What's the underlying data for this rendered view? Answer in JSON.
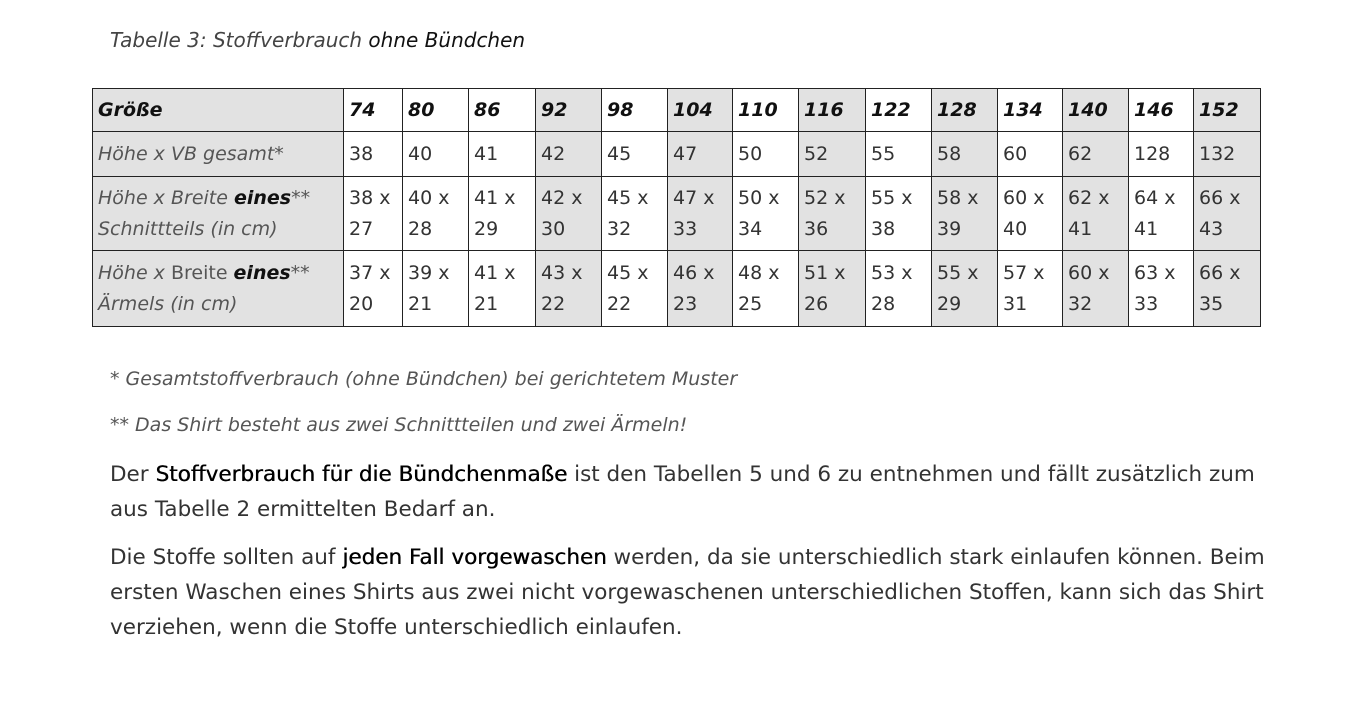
{
  "caption": {
    "text": "Tabelle 3: Stoffverbrauch ",
    "emphasis": "ohne Bündchen"
  },
  "table": {
    "header": {
      "label": "Größe",
      "sizes": [
        "74",
        "80",
        "86",
        "92",
        "98",
        "104",
        "110",
        "116",
        "122",
        "128",
        "134",
        "140",
        "146",
        "152"
      ]
    },
    "rows": [
      {
        "label": [
          "Höhe x VB gesamt*"
        ],
        "cells": [
          "38",
          "40",
          "41",
          "42",
          "45",
          "47",
          "50",
          "52",
          "55",
          "58",
          "60",
          "62",
          "128",
          "132"
        ]
      },
      {
        "label": [
          "Höhe x Breite ",
          "eines",
          "**",
          "Schnittteils (in cm)"
        ],
        "cells": [
          "38 x 27",
          "40 x 28",
          "41 x 29",
          "42 x 30",
          "45 x 32",
          "47 x 33",
          "50 x 34",
          "52 x 36",
          "55 x 38",
          "58 x 39",
          "60 x 40",
          "62 x 41",
          "64 x 41",
          "66 x 43"
        ]
      },
      {
        "label": [
          "Höhe x ",
          "Breite ",
          "eines",
          "**",
          "Ärmels (in cm)"
        ],
        "cells": [
          "37 x 20",
          "39 x 21",
          "41 x 21",
          "43 x 22",
          "45 x 22",
          "46 x 23",
          "48 x 25",
          "51 x 26",
          "53 x 28",
          "55 x 29",
          "57 x 31",
          "60 x 32",
          "63 x 33",
          "66 x 35"
        ]
      }
    ]
  },
  "footnotes": [
    "* Gesamtstoffverbrauch (ohne Bündchen) bei gerichtetem Muster",
    "** Das Shirt besteht aus zwei Schnittteilen und zwei Ärmeln!"
  ],
  "paragraphs": [
    [
      "Der ",
      "Stoffverbrauch für die Bündchenmaße",
      " ist den Tabellen 5 und 6 zu entnehmen und fällt zusätzlich zum aus Tabelle 2 ermittelten Bedarf an."
    ],
    [
      "Die Stoffe sollten auf ",
      "jeden Fall vorgewaschen",
      " werden, da sie unterschiedlich stark einlaufen können. Beim ersten Waschen eines Shirts aus zwei nicht vorgewaschenen unterschiedlichen Stoffen, kann sich das Shirt verziehen, wenn die Stoffe unterschiedlich einlaufen."
    ]
  ]
}
